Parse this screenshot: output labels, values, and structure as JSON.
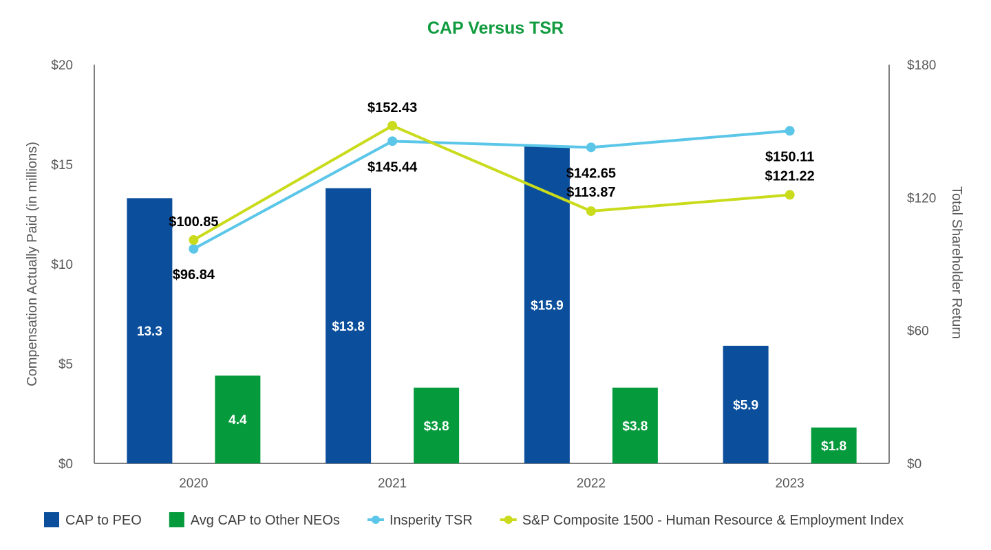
{
  "chart_data": {
    "type": "bar",
    "title": "CAP Versus TSR",
    "categories": [
      "2020",
      "2021",
      "2022",
      "2023"
    ],
    "y_left": {
      "label": "Compensation Actually Paid (in millions)",
      "range": [
        0,
        20
      ],
      "ticks": [
        {
          "value": 0,
          "label": "$0"
        },
        {
          "value": 5,
          "label": "$5"
        },
        {
          "value": 10,
          "label": "$10"
        },
        {
          "value": 15,
          "label": "$15"
        },
        {
          "value": 20,
          "label": "$20"
        }
      ]
    },
    "y_right": {
      "label": "Total Shareholder Return",
      "range": [
        0,
        180
      ],
      "ticks": [
        {
          "value": 0,
          "label": "$0"
        },
        {
          "value": 60,
          "label": "$60"
        },
        {
          "value": 120,
          "label": "$120"
        },
        {
          "value": 180,
          "label": "$180"
        }
      ]
    },
    "bar_series": [
      {
        "name": "CAP to PEO",
        "color": "#0B4F9C",
        "values": [
          13.3,
          13.8,
          15.9,
          5.9
        ],
        "labels": [
          "13.3",
          "$13.8",
          "$15.9",
          "$5.9"
        ]
      },
      {
        "name": "Avg CAP to Other NEOs",
        "color": "#059A3C",
        "values": [
          4.4,
          3.8,
          3.8,
          1.8
        ],
        "labels": [
          "4.4",
          "$3.8",
          "$3.8",
          "$1.8"
        ]
      }
    ],
    "line_series": [
      {
        "name": "Insperity TSR",
        "color": "#5BC6E8",
        "axis": "right",
        "values": [
          96.84,
          145.44,
          142.65,
          150.11
        ],
        "labels": [
          "$96.84",
          "$145.44",
          "$142.65",
          "$150.11"
        ]
      },
      {
        "name": "S&P Composite 1500 - Human Resource & Employment Index",
        "color": "#C9DB1B",
        "axis": "right",
        "values": [
          100.85,
          152.43,
          113.87,
          121.22
        ],
        "labels": [
          "$100.85",
          "$152.43",
          "$113.87",
          "$121.22"
        ]
      }
    ],
    "legend": "bottom",
    "title_color": "#0F9B3E",
    "grid": false
  }
}
